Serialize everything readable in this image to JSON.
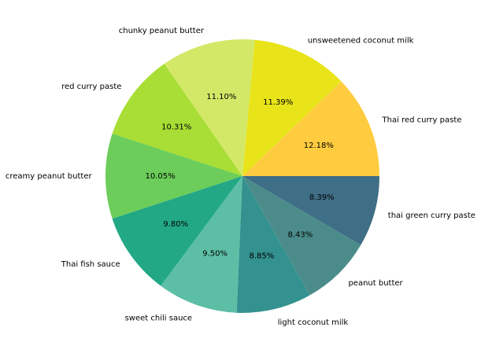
{
  "chart_data": {
    "type": "pie",
    "title": "",
    "start_angle_deg": 0,
    "direction": "counterclockwise",
    "slices": [
      {
        "label": "Thai red curry paste",
        "pct_label": "12.18%",
        "value": 12.18,
        "color": "#ffcc3f"
      },
      {
        "label": "unsweetened coconut milk",
        "pct_label": "11.39%",
        "value": 11.39,
        "color": "#e8e419"
      },
      {
        "label": "chunky peanut butter",
        "pct_label": "11.10%",
        "value": 11.1,
        "color": "#d4e868"
      },
      {
        "label": "red curry paste",
        "pct_label": "10.31%",
        "value": 10.31,
        "color": "#a8de35"
      },
      {
        "label": "creamy peanut butter",
        "pct_label": "10.05%",
        "value": 10.05,
        "color": "#6ccd5a"
      },
      {
        "label": "Thai fish sauce",
        "pct_label": "9.80%",
        "value": 9.8,
        "color": "#22a884"
      },
      {
        "label": "sweet chili sauce",
        "pct_label": "9.50%",
        "value": 9.5,
        "color": "#5dbea6"
      },
      {
        "label": "light coconut milk",
        "pct_label": "8.85%",
        "value": 8.85,
        "color": "#33928f"
      },
      {
        "label": "peanut butter",
        "pct_label": "8.43%",
        "value": 8.43,
        "color": "#4b8c8a"
      },
      {
        "label": "thai green curry paste",
        "pct_label": "8.39%",
        "value": 8.39,
        "color": "#3f6e87"
      }
    ]
  }
}
